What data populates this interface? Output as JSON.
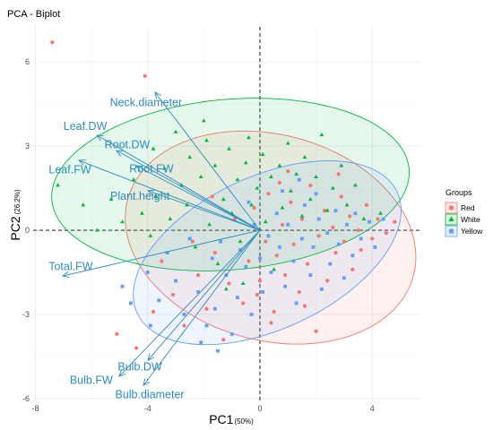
{
  "chart_data": {
    "type": "scatter",
    "title": "PCA - Biplot",
    "xlabel": "PC1",
    "xlabel_note": "(50%)",
    "ylabel": "PC2",
    "ylabel_note": "(26.2%)",
    "xlim": [
      -8.08,
      5.75
    ],
    "ylim": [
      -6.13,
      7.25
    ],
    "x_ticks": [
      -8,
      -4,
      0,
      4
    ],
    "x_tick_labels": [
      "-8",
      "-4",
      "0",
      "4"
    ],
    "y_ticks": [
      -6,
      -3,
      0,
      3,
      6
    ],
    "y_tick_labels": [
      "-6",
      "-3",
      "0",
      "3",
      "6"
    ],
    "grid": true,
    "reference_lines": {
      "pc1": 0,
      "pc2": 0,
      "dashed": true
    },
    "legend": {
      "title": "Groups",
      "placement": "right"
    },
    "variable_color": "#2B8CBE",
    "variables": [
      {
        "name": "Neck.diameter",
        "pc1": -3.74,
        "pc2": 4.92
      },
      {
        "name": "Leaf.DW",
        "pc1": -5.81,
        "pc2": 3.39
      },
      {
        "name": "Root.DW",
        "pc1": -5.11,
        "pc2": 2.84
      },
      {
        "name": "Leaf.FW",
        "pc1": -6.45,
        "pc2": 2.49
      },
      {
        "name": "Root.FW",
        "pc1": -4.41,
        "pc2": 2.3
      },
      {
        "name": "Plant.height",
        "pc1": -3.99,
        "pc2": 1.41
      },
      {
        "name": "Total.FW",
        "pc1": -7.03,
        "pc2": -1.63
      },
      {
        "name": "Bulb.DW",
        "pc1": -3.99,
        "pc2": -4.63
      },
      {
        "name": "Bulb.FW",
        "pc1": -5.02,
        "pc2": -5.21
      },
      {
        "name": "Bulb.diameter",
        "pc1": -4.15,
        "pc2": -5.53
      }
    ],
    "series": [
      {
        "name": "Red",
        "color": "#F8766D",
        "marker": "circle",
        "ellipse": {
          "center": [
            0.38,
            -0.26
          ],
          "semi_axes": [
            5.27,
            3.67
          ],
          "angle_deg": -15
        },
        "points": [
          [
            -7.4,
            6.7
          ],
          [
            -4.1,
            5.5
          ],
          [
            -5.1,
            -3.7
          ],
          [
            -4.4,
            -4.2
          ],
          [
            -3.8,
            -2.9
          ],
          [
            -3.1,
            -2.3
          ],
          [
            -2.7,
            -3.4
          ],
          [
            -2.2,
            -1.6
          ],
          [
            -1.9,
            -2.8
          ],
          [
            -1.6,
            -0.8
          ],
          [
            -1.3,
            -3.9
          ],
          [
            -1.1,
            -1.9
          ],
          [
            -0.9,
            0.4
          ],
          [
            -0.6,
            -2.6
          ],
          [
            -0.4,
            -1.1
          ],
          [
            -0.2,
            0.8
          ],
          [
            0.0,
            -1.8
          ],
          [
            0.2,
            -0.4
          ],
          [
            0.3,
            1.3
          ],
          [
            0.5,
            -2.9
          ],
          [
            0.6,
            -0.9
          ],
          [
            0.8,
            0.2
          ],
          [
            0.9,
            -1.6
          ],
          [
            1.1,
            1.0
          ],
          [
            1.2,
            -0.5
          ],
          [
            1.4,
            -2.2
          ],
          [
            1.5,
            0.4
          ],
          [
            1.7,
            -1.2
          ],
          [
            1.8,
            1.6
          ],
          [
            2.0,
            -3.6
          ],
          [
            2.1,
            -0.2
          ],
          [
            2.3,
            0.7
          ],
          [
            2.4,
            -1.8
          ],
          [
            2.6,
            0.1
          ],
          [
            2.7,
            -0.8
          ],
          [
            2.9,
            1.2
          ],
          [
            3.0,
            -0.4
          ],
          [
            3.2,
            0.5
          ],
          [
            3.3,
            -1.4
          ],
          [
            3.5,
            0.0
          ],
          [
            3.6,
            -0.7
          ],
          [
            3.8,
            0.9
          ],
          [
            4.0,
            -0.3
          ],
          [
            4.2,
            0.4
          ],
          [
            4.5,
            -0.1
          ],
          [
            4.8,
            0.3
          ],
          [
            1.0,
            2.1
          ],
          [
            -0.1,
            -2.3
          ],
          [
            0.4,
            -3.3
          ],
          [
            -2.4,
            -0.4
          ],
          [
            -3.5,
            -1.1
          ],
          [
            1.6,
            -2.7
          ],
          [
            2.8,
            2.0
          ],
          [
            -1.7,
            1.2
          ],
          [
            0.7,
            1.7
          ]
        ]
      },
      {
        "name": "White",
        "color": "#00BA38",
        "marker": "triangle",
        "ellipse": {
          "center": [
            -1.05,
            1.63
          ],
          "semi_axes": [
            6.39,
            3.04
          ],
          "angle_deg": 5
        },
        "points": [
          [
            -7.2,
            1.6
          ],
          [
            -6.3,
            0.9
          ],
          [
            -5.8,
            0.0
          ],
          [
            -5.3,
            1.1
          ],
          [
            -4.9,
            0.3
          ],
          [
            -4.5,
            1.8
          ],
          [
            -4.2,
            0.6
          ],
          [
            -3.9,
            -0.2
          ],
          [
            -3.7,
            1.2
          ],
          [
            -3.4,
            2.2
          ],
          [
            -3.2,
            0.4
          ],
          [
            -3.0,
            3.5
          ],
          [
            -2.8,
            1.6
          ],
          [
            -2.6,
            0.9
          ],
          [
            -2.5,
            2.6
          ],
          [
            -2.3,
            -0.6
          ],
          [
            -2.1,
            1.9
          ],
          [
            -1.9,
            3.2
          ],
          [
            -1.8,
            0.2
          ],
          [
            -1.6,
            2.3
          ],
          [
            -1.5,
            -1.2
          ],
          [
            -1.3,
            1.1
          ],
          [
            -1.1,
            2.9
          ],
          [
            -1.0,
            0.6
          ],
          [
            -0.8,
            1.8
          ],
          [
            -0.7,
            -0.4
          ],
          [
            -0.5,
            2.4
          ],
          [
            -0.4,
            3.3
          ],
          [
            -0.3,
            0.9
          ],
          [
            -0.1,
            1.5
          ],
          [
            0.1,
            2.7
          ],
          [
            0.2,
            0.3
          ],
          [
            0.4,
            1.9
          ],
          [
            0.5,
            -1.4
          ],
          [
            0.7,
            2.3
          ],
          [
            0.8,
            0.8
          ],
          [
            1.0,
            3.1
          ],
          [
            1.1,
            1.4
          ],
          [
            1.3,
            2.0
          ],
          [
            1.5,
            0.5
          ],
          [
            1.6,
            2.6
          ],
          [
            1.8,
            1.1
          ],
          [
            2.0,
            1.9
          ],
          [
            2.2,
            3.4
          ],
          [
            2.4,
            0.7
          ],
          [
            2.6,
            1.5
          ],
          [
            2.9,
            2.3
          ],
          [
            3.1,
            0.9
          ],
          [
            3.4,
            1.6
          ],
          [
            3.7,
            0.4
          ],
          [
            4.3,
            0.6
          ],
          [
            -1.2,
            -2.1
          ],
          [
            -0.6,
            -1.9
          ],
          [
            -2.0,
            3.9
          ],
          [
            -3.8,
            2.9
          ]
        ]
      },
      {
        "name": "Yellow",
        "color": "#619CFF",
        "marker": "square",
        "ellipse": {
          "center": [
            0.26,
            -0.8
          ],
          "semi_axes": [
            5.11,
            2.72
          ],
          "angle_deg": 25
        },
        "points": [
          [
            -4.0,
            -1.5
          ],
          [
            -3.6,
            -2.5
          ],
          [
            -3.3,
            -0.8
          ],
          [
            -3.0,
            -1.8
          ],
          [
            -2.7,
            -3.0
          ],
          [
            -2.5,
            -0.3
          ],
          [
            -2.2,
            -2.2
          ],
          [
            -1.9,
            -3.4
          ],
          [
            -1.7,
            -1.0
          ],
          [
            -1.6,
            -2.8
          ],
          [
            -1.4,
            -0.4
          ],
          [
            -1.2,
            -1.6
          ],
          [
            -1.0,
            -3.7
          ],
          [
            -0.8,
            -2.4
          ],
          [
            -0.7,
            -0.7
          ],
          [
            -0.5,
            -1.3
          ],
          [
            -0.3,
            -3.0
          ],
          [
            -0.2,
            0.2
          ],
          [
            0.0,
            -1.0
          ],
          [
            0.1,
            -2.2
          ],
          [
            0.3,
            -0.2
          ],
          [
            0.4,
            -1.5
          ],
          [
            0.6,
            0.6
          ],
          [
            0.7,
            -0.6
          ],
          [
            0.9,
            -2.0
          ],
          [
            1.0,
            0.2
          ],
          [
            1.2,
            -1.1
          ],
          [
            1.3,
            -2.6
          ],
          [
            1.5,
            -0.3
          ],
          [
            1.6,
            0.9
          ],
          [
            1.8,
            -1.6
          ],
          [
            1.9,
            -0.6
          ],
          [
            2.1,
            0.4
          ],
          [
            2.2,
            -2.1
          ],
          [
            2.4,
            -0.1
          ],
          [
            2.5,
            -1.2
          ],
          [
            2.7,
            0.7
          ],
          [
            2.8,
            -0.5
          ],
          [
            3.0,
            -1.7
          ],
          [
            3.1,
            0.2
          ],
          [
            3.3,
            -0.9
          ],
          [
            3.4,
            0.6
          ],
          [
            3.6,
            -0.3
          ],
          [
            3.9,
            0.3
          ],
          [
            4.1,
            -0.6
          ],
          [
            4.4,
            0.4
          ],
          [
            -4.6,
            -2.6
          ],
          [
            -4.9,
            -2.0
          ],
          [
            -1.5,
            -4.3
          ],
          [
            -2.1,
            -4.0
          ],
          [
            0.8,
            1.4
          ],
          [
            1.4,
            1.8
          ],
          [
            -0.4,
            1.0
          ],
          [
            2.0,
            1.3
          ],
          [
            -3.9,
            -3.4
          ]
        ]
      }
    ]
  }
}
